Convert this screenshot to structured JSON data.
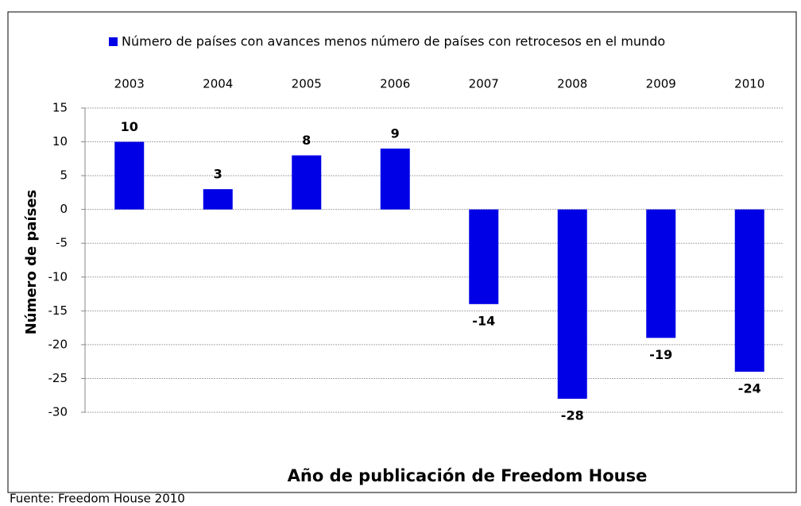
{
  "chart_data": {
    "type": "bar",
    "categories": [
      "2003",
      "2004",
      "2005",
      "2006",
      "2007",
      "2008",
      "2009",
      "2010"
    ],
    "series": [
      {
        "name": "Número de países con avances menos número de países con retrocesos en el mundo",
        "color": "#0000e6",
        "values": [
          10,
          3,
          8,
          9,
          -14,
          -28,
          -19,
          -24
        ]
      }
    ],
    "ylim": [
      -30,
      15
    ],
    "yticks": [
      -30,
      -25,
      -20,
      -15,
      -10,
      -5,
      0,
      5,
      10,
      15
    ],
    "grid": true,
    "ylabel": "Número de países",
    "xlabel": "Año de publicación de Freedom House",
    "source": "Fuente: Freedom House 2010",
    "legend": "top"
  }
}
